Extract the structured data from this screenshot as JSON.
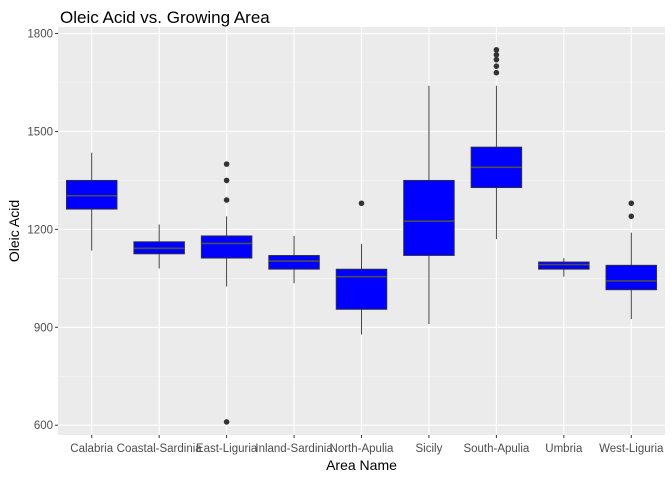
{
  "chart_data": {
    "type": "boxplot",
    "title": "Oleic Acid vs. Growing Area",
    "xlabel": "Area Name",
    "ylabel": "Oleic Acid",
    "ylim": [
      570,
      1820
    ],
    "y_ticks": [
      600,
      900,
      1200,
      1500,
      1800
    ],
    "y_tick_labels": [
      "600",
      "900",
      "1200",
      "1500",
      "1800"
    ],
    "grid": true,
    "box_fill": "#0000ff",
    "median_color": "#4d4d4d",
    "panel_background": "#ebebeb",
    "categories": [
      "Calabria",
      "Coastal-Sardinia",
      "East-Liguria",
      "Inland-Sardinia",
      "North-Apulia",
      "Sicily",
      "South-Apulia",
      "Umbria",
      "West-Liguria"
    ],
    "boxes": [
      {
        "category": "Calabria",
        "whisker_low": 1135,
        "q1": 1262,
        "median": 1303,
        "q3": 1350,
        "whisker_high": 1435,
        "outliers": []
      },
      {
        "category": "Coastal-Sardinia",
        "whisker_low": 1080,
        "q1": 1125,
        "median": 1142,
        "q3": 1162,
        "whisker_high": 1215,
        "outliers": []
      },
      {
        "category": "East-Liguria",
        "whisker_low": 1025,
        "q1": 1112,
        "median": 1157,
        "q3": 1180,
        "whisker_high": 1240,
        "outliers": [
          1290,
          1350,
          1400,
          610
        ]
      },
      {
        "category": "Inland-Sardinia",
        "whisker_low": 1035,
        "q1": 1078,
        "median": 1103,
        "q3": 1120,
        "whisker_high": 1180,
        "outliers": []
      },
      {
        "category": "North-Apulia",
        "whisker_low": 878,
        "q1": 955,
        "median": 1055,
        "q3": 1078,
        "whisker_high": 1155,
        "outliers": [
          1280
        ]
      },
      {
        "category": "Sicily",
        "whisker_low": 910,
        "q1": 1120,
        "median": 1225,
        "q3": 1350,
        "whisker_high": 1640,
        "outliers": []
      },
      {
        "category": "South-Apulia",
        "whisker_low": 1170,
        "q1": 1328,
        "median": 1390,
        "q3": 1452,
        "whisker_high": 1640,
        "outliers": [
          1680,
          1700,
          1720,
          1735,
          1750
        ]
      },
      {
        "category": "Umbria",
        "whisker_low": 1055,
        "q1": 1078,
        "median": 1092,
        "q3": 1100,
        "whisker_high": 1112,
        "outliers": []
      },
      {
        "category": "West-Liguria",
        "whisker_low": 925,
        "q1": 1015,
        "median": 1042,
        "q3": 1090,
        "whisker_high": 1190,
        "outliers": [
          1240,
          1280
        ]
      }
    ]
  }
}
